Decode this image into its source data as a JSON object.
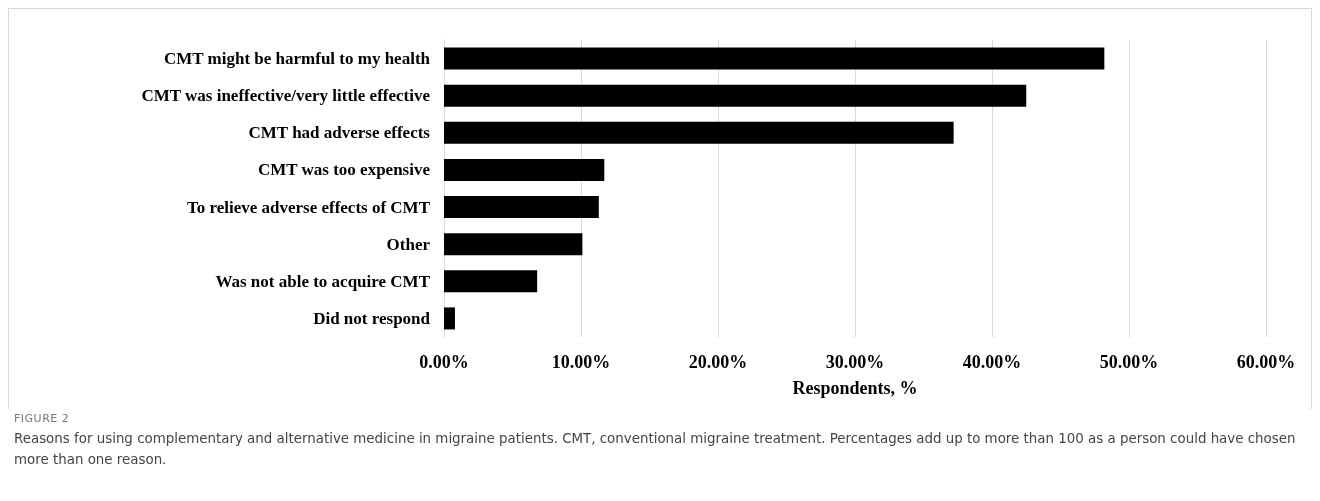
{
  "chart_data": {
    "type": "bar",
    "orientation": "horizontal",
    "xlabel": "Respondents, %",
    "categories": [
      "CMT might be harmful to my health",
      "CMT was ineffective/very little effective",
      "CMT had adverse effects",
      "CMT was too expensive",
      "To relieve adverse effects of CMT",
      "Other",
      "Was not able to acquire CMT",
      "Did not respond"
    ],
    "values": [
      48.2,
      42.5,
      37.2,
      11.7,
      11.3,
      10.1,
      6.8,
      0.8
    ],
    "color": "#000000",
    "xlim": [
      0,
      60
    ],
    "xticks": [
      {
        "value": 0,
        "label": "0.00%"
      },
      {
        "value": 10,
        "label": "10.00%"
      },
      {
        "value": 20,
        "label": "20.00%"
      },
      {
        "value": 30,
        "label": "30.00%"
      },
      {
        "value": 40,
        "label": "40.00%"
      },
      {
        "value": 50,
        "label": "50.00%"
      },
      {
        "value": 60,
        "label": "60.00%"
      }
    ],
    "grid": "x",
    "annotations": [
      "FIGURE 2",
      "Reasons for using complementary and alternative medicine in migraine patients. CMT, conventional migraine treatment. Percentages add up to more than 100 as a person could have chosen more than one reason."
    ]
  }
}
